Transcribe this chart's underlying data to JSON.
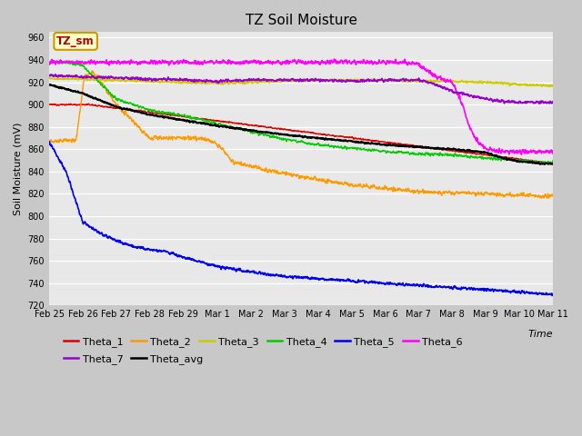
{
  "title": "TZ Soil Moisture",
  "ylabel": "Soil Moisture (mV)",
  "xlabel": "Time",
  "annotation": "TZ_sm",
  "ylim": [
    720,
    965
  ],
  "yticks": [
    720,
    740,
    760,
    780,
    800,
    820,
    840,
    860,
    880,
    900,
    920,
    940,
    960
  ],
  "xtick_labels": [
    "Feb 25",
    "Feb 26",
    "Feb 27",
    "Feb 28",
    "Feb 29",
    "Mar 1",
    "Mar 2",
    "Mar 3",
    "Mar 4",
    "Mar 5",
    "Mar 6",
    "Mar 7",
    "Mar 8",
    "Mar 9",
    "Mar 10",
    "Mar 11"
  ],
  "fig_bg": "#c8c8c8",
  "plot_bg": "#e8e8e8",
  "grid_color": "#ffffff",
  "series": {
    "Theta_1": {
      "color": "#dd0000",
      "lw": 1.0
    },
    "Theta_2": {
      "color": "#ff9900",
      "lw": 1.0
    },
    "Theta_3": {
      "color": "#cccc00",
      "lw": 1.2
    },
    "Theta_4": {
      "color": "#00cc00",
      "lw": 1.0
    },
    "Theta_5": {
      "color": "#0000ee",
      "lw": 1.2
    },
    "Theta_6": {
      "color": "#ff00ff",
      "lw": 1.2
    },
    "Theta_7": {
      "color": "#9900cc",
      "lw": 1.2
    },
    "Theta_avg": {
      "color": "#000000",
      "lw": 1.5
    }
  },
  "title_fontsize": 11,
  "tick_fontsize": 7,
  "label_fontsize": 8,
  "legend_fontsize": 8
}
